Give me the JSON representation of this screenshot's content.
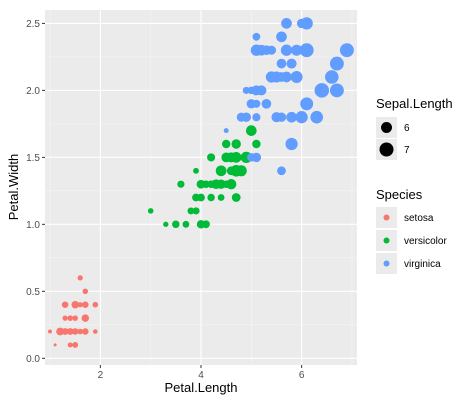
{
  "chart_data": {
    "type": "scatter",
    "xlabel": "Petal.Length",
    "ylabel": "Petal.Width",
    "xlim": [
      0.9,
      7.1
    ],
    "ylim": [
      -0.05,
      2.6
    ],
    "x_ticks": [
      2,
      4,
      6
    ],
    "y_ticks": [
      0.0,
      0.5,
      1.0,
      1.5,
      2.0,
      2.5
    ],
    "x_tick_labels": [
      "2",
      "4",
      "6"
    ],
    "y_tick_labels": [
      "0.0",
      "0.5",
      "1.0",
      "1.5",
      "2.0",
      "2.5"
    ],
    "grid": true,
    "background": "#ebebeb",
    "size_legend": {
      "title": "Sepal.Length",
      "entries": [
        {
          "label": "6",
          "value": 6
        },
        {
          "label": "7",
          "value": 7
        }
      ]
    },
    "color_legend": {
      "title": "Species",
      "entries": [
        {
          "label": "setosa",
          "color": "#f8766d"
        },
        {
          "label": "versicolor",
          "color": "#00ba38"
        },
        {
          "label": "virginica",
          "color": "#619cff"
        }
      ]
    },
    "series": [
      {
        "name": "setosa",
        "color": "#f8766d",
        "points": [
          [
            1.4,
            0.2,
            5.1
          ],
          [
            1.4,
            0.2,
            4.9
          ],
          [
            1.3,
            0.2,
            4.7
          ],
          [
            1.5,
            0.2,
            4.6
          ],
          [
            1.4,
            0.2,
            5.0
          ],
          [
            1.7,
            0.4,
            5.4
          ],
          [
            1.4,
            0.3,
            4.6
          ],
          [
            1.5,
            0.2,
            5.0
          ],
          [
            1.4,
            0.2,
            4.4
          ],
          [
            1.5,
            0.1,
            4.9
          ],
          [
            1.5,
            0.2,
            5.4
          ],
          [
            1.6,
            0.2,
            4.8
          ],
          [
            1.4,
            0.1,
            4.8
          ],
          [
            1.1,
            0.1,
            4.3
          ],
          [
            1.2,
            0.2,
            5.8
          ],
          [
            1.5,
            0.4,
            5.7
          ],
          [
            1.3,
            0.4,
            5.4
          ],
          [
            1.4,
            0.3,
            5.1
          ],
          [
            1.7,
            0.3,
            5.7
          ],
          [
            1.5,
            0.3,
            5.1
          ],
          [
            1.7,
            0.2,
            5.4
          ],
          [
            1.5,
            0.4,
            5.1
          ],
          [
            1.0,
            0.2,
            4.6
          ],
          [
            1.7,
            0.5,
            5.1
          ],
          [
            1.9,
            0.2,
            4.8
          ],
          [
            1.6,
            0.2,
            5.0
          ],
          [
            1.6,
            0.4,
            5.0
          ],
          [
            1.5,
            0.2,
            5.2
          ],
          [
            1.4,
            0.2,
            5.2
          ],
          [
            1.6,
            0.2,
            4.7
          ],
          [
            1.6,
            0.2,
            4.8
          ],
          [
            1.5,
            0.4,
            5.4
          ],
          [
            1.5,
            0.1,
            5.2
          ],
          [
            1.4,
            0.2,
            5.5
          ],
          [
            1.5,
            0.2,
            4.9
          ],
          [
            1.2,
            0.2,
            5.0
          ],
          [
            1.3,
            0.2,
            5.5
          ],
          [
            1.4,
            0.1,
            4.9
          ],
          [
            1.3,
            0.2,
            4.4
          ],
          [
            1.5,
            0.2,
            5.1
          ],
          [
            1.3,
            0.3,
            5.0
          ],
          [
            1.3,
            0.3,
            4.5
          ],
          [
            1.3,
            0.2,
            4.4
          ],
          [
            1.6,
            0.6,
            5.0
          ],
          [
            1.9,
            0.4,
            5.1
          ],
          [
            1.4,
            0.3,
            4.8
          ],
          [
            1.6,
            0.2,
            5.1
          ],
          [
            1.4,
            0.2,
            4.6
          ],
          [
            1.5,
            0.2,
            5.3
          ],
          [
            1.4,
            0.2,
            5.0
          ]
        ]
      },
      {
        "name": "versicolor",
        "color": "#00ba38",
        "points": [
          [
            4.7,
            1.4,
            7.0
          ],
          [
            4.5,
            1.5,
            6.4
          ],
          [
            4.9,
            1.5,
            6.9
          ],
          [
            4.0,
            1.3,
            5.5
          ],
          [
            4.6,
            1.5,
            6.5
          ],
          [
            4.5,
            1.3,
            5.7
          ],
          [
            4.7,
            1.6,
            6.3
          ],
          [
            3.3,
            1.0,
            4.9
          ],
          [
            4.6,
            1.3,
            6.6
          ],
          [
            3.9,
            1.4,
            5.2
          ],
          [
            3.5,
            1.0,
            5.0
          ],
          [
            4.2,
            1.5,
            5.9
          ],
          [
            4.0,
            1.0,
            6.0
          ],
          [
            4.7,
            1.4,
            6.1
          ],
          [
            3.6,
            1.3,
            5.6
          ],
          [
            4.4,
            1.4,
            6.7
          ],
          [
            4.5,
            1.5,
            5.6
          ],
          [
            4.1,
            1.0,
            5.8
          ],
          [
            4.5,
            1.5,
            6.2
          ],
          [
            3.9,
            1.1,
            5.6
          ],
          [
            4.8,
            1.8,
            5.9
          ],
          [
            4.0,
            1.3,
            6.1
          ],
          [
            4.9,
            1.5,
            6.3
          ],
          [
            4.7,
            1.2,
            6.1
          ],
          [
            4.3,
            1.3,
            6.4
          ],
          [
            4.4,
            1.4,
            6.6
          ],
          [
            4.8,
            1.4,
            6.8
          ],
          [
            5.0,
            1.7,
            6.7
          ],
          [
            4.5,
            1.5,
            6.0
          ],
          [
            3.5,
            1.0,
            5.7
          ],
          [
            3.8,
            1.1,
            5.5
          ],
          [
            3.7,
            1.0,
            5.5
          ],
          [
            3.9,
            1.2,
            5.8
          ],
          [
            5.1,
            1.6,
            6.0
          ],
          [
            4.5,
            1.5,
            5.4
          ],
          [
            4.5,
            1.6,
            6.0
          ],
          [
            4.7,
            1.5,
            6.7
          ],
          [
            4.4,
            1.3,
            6.3
          ],
          [
            4.1,
            1.3,
            5.6
          ],
          [
            4.0,
            1.3,
            5.5
          ],
          [
            4.4,
            1.2,
            5.5
          ],
          [
            4.6,
            1.4,
            6.1
          ],
          [
            4.0,
            1.2,
            5.8
          ],
          [
            3.3,
            1.0,
            5.0
          ],
          [
            4.2,
            1.3,
            5.6
          ],
          [
            4.2,
            1.2,
            5.7
          ],
          [
            4.2,
            1.3,
            5.7
          ],
          [
            4.3,
            1.3,
            6.2
          ],
          [
            3.0,
            1.1,
            5.1
          ],
          [
            4.1,
            1.3,
            5.7
          ]
        ]
      },
      {
        "name": "virginica",
        "color": "#619cff",
        "points": [
          [
            6.0,
            2.5,
            6.3
          ],
          [
            5.1,
            1.9,
            5.8
          ],
          [
            5.9,
            2.1,
            7.1
          ],
          [
            5.6,
            1.8,
            6.3
          ],
          [
            5.8,
            2.2,
            6.5
          ],
          [
            6.6,
            2.1,
            7.6
          ],
          [
            4.5,
            1.7,
            4.9
          ],
          [
            6.3,
            1.8,
            7.3
          ],
          [
            5.8,
            1.8,
            6.7
          ],
          [
            6.1,
            2.5,
            7.2
          ],
          [
            5.1,
            2.0,
            6.5
          ],
          [
            5.3,
            1.9,
            6.4
          ],
          [
            5.5,
            2.1,
            6.8
          ],
          [
            5.0,
            2.0,
            5.7
          ],
          [
            5.1,
            2.4,
            5.8
          ],
          [
            5.3,
            2.3,
            6.4
          ],
          [
            5.5,
            1.8,
            6.5
          ],
          [
            6.7,
            2.2,
            7.7
          ],
          [
            6.9,
            2.3,
            7.7
          ],
          [
            5.0,
            1.5,
            6.0
          ],
          [
            5.7,
            2.3,
            6.9
          ],
          [
            4.9,
            2.0,
            5.6
          ],
          [
            6.7,
            2.0,
            7.7
          ],
          [
            4.9,
            1.8,
            6.3
          ],
          [
            5.7,
            2.1,
            6.7
          ],
          [
            6.0,
            1.8,
            7.2
          ],
          [
            4.8,
            1.8,
            6.2
          ],
          [
            4.9,
            1.8,
            6.1
          ],
          [
            5.6,
            2.1,
            6.4
          ],
          [
            5.8,
            1.6,
            7.2
          ],
          [
            6.1,
            1.9,
            7.4
          ],
          [
            6.4,
            2.0,
            7.9
          ],
          [
            5.6,
            2.2,
            6.4
          ],
          [
            5.1,
            1.5,
            6.3
          ],
          [
            5.6,
            1.4,
            6.1
          ],
          [
            6.1,
            2.3,
            7.7
          ],
          [
            5.6,
            2.4,
            6.3
          ],
          [
            5.5,
            1.8,
            6.4
          ],
          [
            4.8,
            1.8,
            6.0
          ],
          [
            5.4,
            2.1,
            6.9
          ],
          [
            5.6,
            2.4,
            6.7
          ],
          [
            5.1,
            2.3,
            6.9
          ],
          [
            5.1,
            1.9,
            5.8
          ],
          [
            5.9,
            2.3,
            6.8
          ],
          [
            5.7,
            2.5,
            6.7
          ],
          [
            5.2,
            2.3,
            6.7
          ],
          [
            5.0,
            1.9,
            6.3
          ],
          [
            5.2,
            2.0,
            6.5
          ],
          [
            5.4,
            2.3,
            6.2
          ],
          [
            5.1,
            1.8,
            5.9
          ]
        ]
      }
    ]
  }
}
